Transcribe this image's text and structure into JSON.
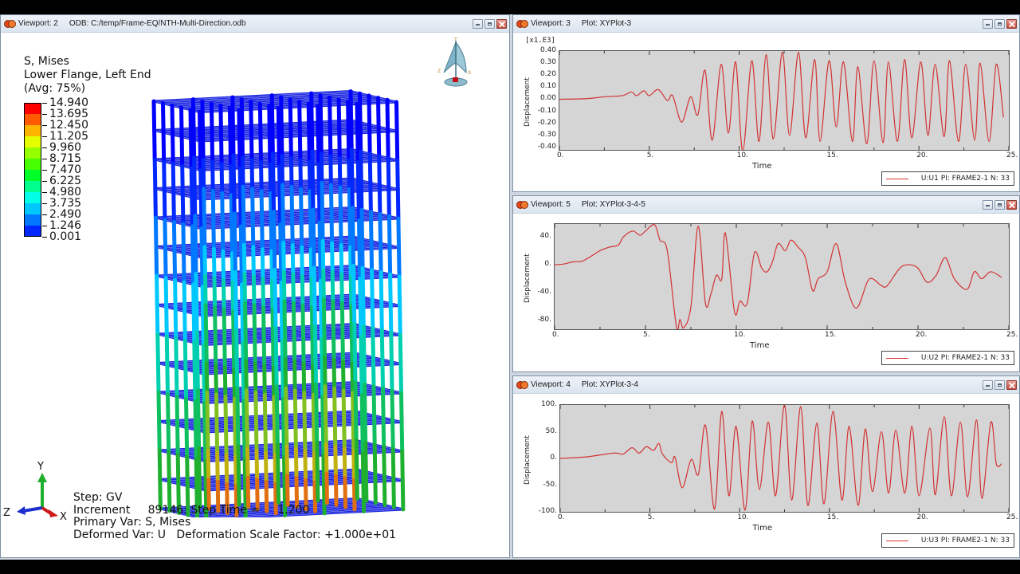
{
  "viewports": {
    "vp2": {
      "name": "Viewport: 2",
      "subtitle": "ODB: C:/temp/Frame-EQ/NTH-Multi-Direction.odb",
      "legend": {
        "title1": "S, Mises",
        "title2": "Lower Flange, Left End",
        "title3": "(Avg: 75%)",
        "values": [
          "14.940",
          "13.695",
          "12.450",
          "11.205",
          "9.960",
          "8.715",
          "7.470",
          "6.225",
          "4.980",
          "3.735",
          "2.490",
          "1.246",
          "0.001"
        ],
        "colors": [
          "#ff0000",
          "#ff5a00",
          "#ffb400",
          "#e6ff00",
          "#96ff00",
          "#46ff00",
          "#00ff28",
          "#00ff8c",
          "#00ffe6",
          "#00c8ff",
          "#0078ff",
          "#0028ff",
          "#0000ff"
        ]
      },
      "info": {
        "step": "Step: GV",
        "increment": "Increment     89146: Step Time =     1.200",
        "primary": "Primary Var: S, Mises",
        "deformed": "Deformed Var: U   Deformation Scale Factor: +1.000e+01"
      },
      "triad": {
        "x": "X",
        "y": "Y",
        "z": "Z"
      },
      "view_cube": {
        "x": "X",
        "y": "Y",
        "z": "Z"
      }
    },
    "vp3": {
      "name": "Viewport: 3",
      "subtitle": "Plot: XYPlot-3",
      "multiplier": "[x1.E3]",
      "ylabel": "Displacement",
      "xlabel": "Time",
      "yticks": [
        "0.40",
        "0.30",
        "0.20",
        "0.10",
        "0.00",
        "-0.10",
        "-0.20",
        "-0.30",
        "-0.40"
      ],
      "xticks": [
        "0.",
        "5.",
        "10.",
        "15.",
        "20.",
        "25."
      ],
      "legend": "U:U1 PI: FRAME2-1 N: 33"
    },
    "vp5": {
      "name": "Viewport: 5",
      "subtitle": "Plot: XYPlot-3-4-5",
      "ylabel": "Displacement",
      "xlabel": "Time",
      "yticks": [
        "40.",
        "0.",
        "-40.",
        "-80."
      ],
      "xticks": [
        "0.",
        "5.",
        "10.",
        "15.",
        "20.",
        "25."
      ],
      "legend": "U:U2 PI: FRAME2-1 N: 33"
    },
    "vp4": {
      "name": "Viewport: 4",
      "subtitle": "Plot: XYPlot-3-4",
      "ylabel": "Displacement",
      "xlabel": "Time",
      "yticks": [
        "100.",
        "50.",
        "0.",
        "-50.",
        "-100."
      ],
      "xticks": [
        "0.",
        "5.",
        "10.",
        "15.",
        "20.",
        "25."
      ],
      "legend": "U:U3 PI: FRAME2-1 N: 33"
    }
  },
  "chart_data": [
    {
      "type": "line",
      "title": "XYPlot-3",
      "xlabel": "Time",
      "ylabel": "Displacement [x1.E3]",
      "xlim": [
        0,
        25
      ],
      "ylim": [
        -0.42,
        0.4
      ],
      "series": [
        {
          "name": "U:U1 PI: FRAME2-1 N: 33",
          "color": "#d33333",
          "x": [
            0,
            1.5,
            2.5,
            3.5,
            4,
            4.3,
            4.7,
            5,
            5.5,
            6,
            6.3,
            6.8,
            7.3,
            7.7,
            8.1,
            8.5,
            9,
            9.4,
            9.8,
            10.2,
            10.7,
            11.1,
            11.5,
            11.9,
            12.4,
            12.8,
            13.3,
            13.7,
            14.2,
            14.5,
            15,
            15.4,
            15.8,
            16.3,
            16.6,
            17.1,
            17.5,
            18,
            18.3,
            18.8,
            19.2,
            19.6,
            20.1,
            20.5,
            20.9,
            21.4,
            21.7,
            22.2,
            22.6,
            23.1,
            23.4,
            23.9,
            24.3,
            24.7
          ],
          "y": [
            0,
            0.005,
            0.02,
            0.03,
            0.06,
            0.03,
            0.07,
            0.03,
            0.08,
            -0.01,
            0.03,
            -0.19,
            0.02,
            -0.13,
            0.24,
            -0.34,
            0.29,
            -0.28,
            0.31,
            -0.43,
            0.32,
            -0.35,
            0.37,
            -0.33,
            0.39,
            -0.3,
            0.39,
            -0.32,
            0.33,
            -0.35,
            0.32,
            -0.23,
            0.31,
            -0.35,
            0.27,
            -0.37,
            0.32,
            -0.36,
            0.31,
            -0.35,
            0.33,
            -0.32,
            0.31,
            -0.3,
            0.29,
            -0.31,
            0.32,
            -0.35,
            0.29,
            -0.34,
            0.3,
            -0.35,
            0.29,
            -0.15
          ]
        }
      ]
    },
    {
      "type": "line",
      "title": "XYPlot-3-4-5",
      "xlabel": "Time",
      "ylabel": "Displacement",
      "xlim": [
        0,
        25
      ],
      "ylim": [
        -92,
        58
      ],
      "series": [
        {
          "name": "U:U2 PI: FRAME2-1 N: 33",
          "color": "#d33333",
          "x": [
            0,
            0.5,
            1,
            1.5,
            2,
            2.5,
            3,
            3.5,
            3.8,
            4.3,
            4.7,
            5,
            5.5,
            5.8,
            6.2,
            6.7,
            6.9,
            7.1,
            7.5,
            7.9,
            8.3,
            8.6,
            8.9,
            9.2,
            9.4,
            9.9,
            10.2,
            10.6,
            11,
            11.4,
            11.7,
            12,
            12.3,
            12.7,
            13,
            13.4,
            13.8,
            14.2,
            14.5,
            15,
            15.5,
            16,
            16.6,
            17.2,
            17.5,
            18,
            18.3,
            19,
            19.5,
            20,
            20.5,
            21,
            21.5,
            22,
            22.7,
            23.1,
            23.5,
            24,
            24.6
          ],
          "y": [
            0,
            1,
            4,
            5,
            12,
            20,
            25,
            28,
            40,
            48,
            42,
            48,
            57,
            35,
            20,
            -88,
            -78,
            -90,
            -60,
            55,
            -55,
            -42,
            -15,
            -20,
            45,
            -67,
            -52,
            -55,
            17,
            -5,
            -10,
            5,
            30,
            20,
            35,
            25,
            10,
            -37,
            -20,
            -10,
            30,
            -25,
            -62,
            -25,
            -20,
            -30,
            -30,
            -5,
            0,
            -5,
            -25,
            -15,
            10,
            -20,
            -35,
            -10,
            -20,
            -10,
            -18
          ]
        }
      ]
    },
    {
      "type": "line",
      "title": "XYPlot-3-4",
      "xlabel": "Time",
      "ylabel": "Displacement",
      "xlim": [
        0,
        25
      ],
      "ylim": [
        -100,
        100
      ],
      "series": [
        {
          "name": "U:U3 PI: FRAME2-1 N: 33",
          "color": "#d33333",
          "x": [
            0,
            1.5,
            3,
            3.5,
            4,
            4.4,
            4.8,
            5.2,
            5.5,
            5.7,
            6.2,
            6.4,
            6.8,
            7.3,
            7.7,
            8.1,
            8.6,
            9,
            9.4,
            9.8,
            10.3,
            10.7,
            11.1,
            11.6,
            12,
            12.5,
            12.9,
            13.4,
            13.8,
            14.3,
            14.7,
            15.2,
            15.7,
            16.1,
            16.6,
            17,
            17.4,
            17.9,
            18.3,
            18.7,
            19.2,
            19.6,
            20,
            20.6,
            20.9,
            21.4,
            21.8,
            22.3,
            22.7,
            23.2,
            23.5,
            24,
            24.3,
            24.6
          ],
          "y": [
            0,
            3,
            10,
            8,
            20,
            10,
            22,
            15,
            28,
            8,
            -8,
            2,
            -55,
            -2,
            -30,
            62,
            -95,
            88,
            -70,
            60,
            -97,
            70,
            -58,
            68,
            -70,
            100,
            -78,
            97,
            -88,
            66,
            -85,
            88,
            -78,
            60,
            -88,
            55,
            -62,
            50,
            -65,
            53,
            -65,
            60,
            -70,
            57,
            -68,
            78,
            -70,
            68,
            -72,
            72,
            -75,
            68,
            -10,
            -10
          ]
        }
      ]
    }
  ]
}
